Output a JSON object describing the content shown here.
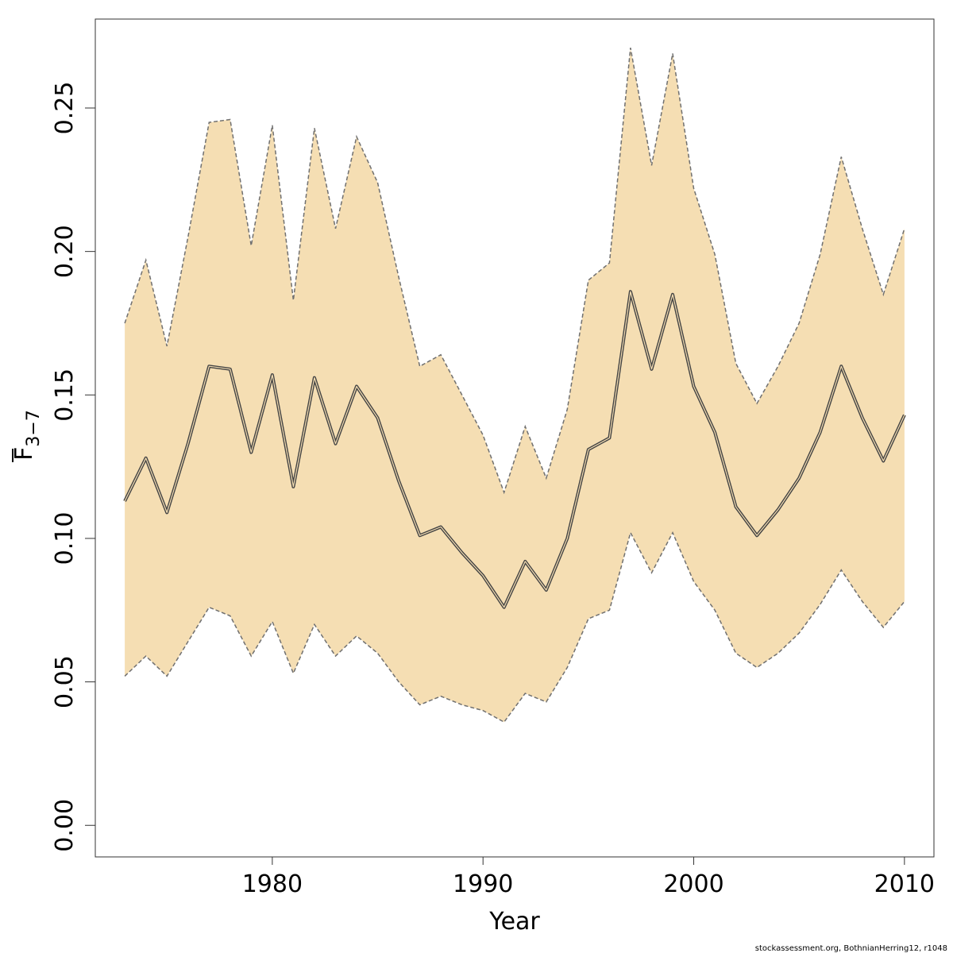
{
  "chart_data": {
    "type": "line",
    "xlabel": "Year",
    "ylabel": "F",
    "ylabel_subscript": "3−7",
    "credit": "stockassessment.org, BothnianHerring12, r1048",
    "xlim": [
      1971.6,
      2011.4
    ],
    "ylim": [
      -0.011,
      0.281
    ],
    "x_ticks": [
      1980,
      1990,
      2000,
      2010
    ],
    "y_ticks": [
      0.0,
      0.05,
      0.1,
      0.15,
      0.2,
      0.25
    ],
    "y_tick_labels": [
      "0.00",
      "0.05",
      "0.10",
      "0.15",
      "0.20",
      "0.25"
    ],
    "colors": {
      "band": "#f5deb3",
      "line": "#444444",
      "bound": "#707070"
    },
    "x": [
      1973,
      1974,
      1975,
      1976,
      1977,
      1978,
      1979,
      1980,
      1981,
      1982,
      1983,
      1984,
      1985,
      1986,
      1987,
      1988,
      1989,
      1990,
      1991,
      1992,
      1993,
      1994,
      1995,
      1996,
      1997,
      1998,
      1999,
      2000,
      2001,
      2002,
      2003,
      2004,
      2005,
      2006,
      2007,
      2008,
      2009,
      2010
    ],
    "series": [
      {
        "role": "estimate",
        "values": [
          0.113,
          0.128,
          0.109,
          0.133,
          0.16,
          0.159,
          0.13,
          0.157,
          0.118,
          0.156,
          0.133,
          0.153,
          0.142,
          0.12,
          0.101,
          0.104,
          0.095,
          0.087,
          0.076,
          0.092,
          0.082,
          0.1,
          0.131,
          0.135,
          0.186,
          0.159,
          0.185,
          0.153,
          0.137,
          0.111,
          0.101,
          0.11,
          0.121,
          0.137,
          0.16,
          0.142,
          0.127,
          0.143
        ]
      },
      {
        "role": "upper",
        "values": [
          0.175,
          0.197,
          0.167,
          0.205,
          0.245,
          0.246,
          0.202,
          0.244,
          0.183,
          0.243,
          0.208,
          0.24,
          0.224,
          0.191,
          0.16,
          0.164,
          0.15,
          0.136,
          0.116,
          0.139,
          0.121,
          0.145,
          0.19,
          0.196,
          0.271,
          0.23,
          0.269,
          0.222,
          0.199,
          0.161,
          0.147,
          0.16,
          0.175,
          0.199,
          0.233,
          0.208,
          0.185,
          0.208
        ]
      },
      {
        "role": "lower",
        "values": [
          0.052,
          0.059,
          0.052,
          0.064,
          0.076,
          0.073,
          0.059,
          0.071,
          0.053,
          0.07,
          0.059,
          0.066,
          0.06,
          0.05,
          0.042,
          0.045,
          0.042,
          0.04,
          0.036,
          0.046,
          0.043,
          0.055,
          0.072,
          0.075,
          0.102,
          0.088,
          0.102,
          0.085,
          0.075,
          0.06,
          0.055,
          0.06,
          0.067,
          0.077,
          0.089,
          0.078,
          0.069,
          0.078
        ]
      }
    ]
  }
}
